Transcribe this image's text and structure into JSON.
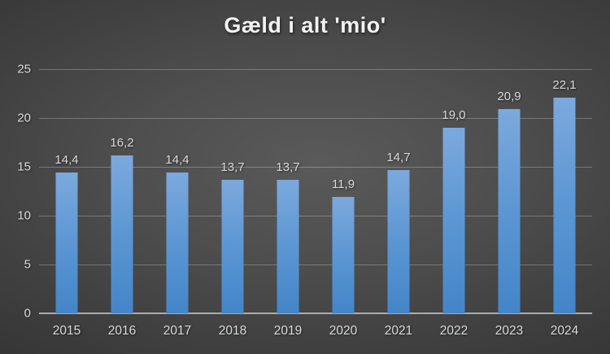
{
  "chart_data": {
    "type": "bar",
    "title": "Gæld i alt 'mio'",
    "categories": [
      "2015",
      "2016",
      "2017",
      "2018",
      "2019",
      "2020",
      "2021",
      "2022",
      "2023",
      "2024"
    ],
    "values": [
      14.4,
      16.2,
      14.4,
      13.7,
      13.7,
      11.9,
      14.7,
      19.0,
      20.9,
      22.1
    ],
    "value_labels": [
      "14,4",
      "16,2",
      "14,4",
      "13,7",
      "13,7",
      "11,9",
      "14,7",
      "19,0",
      "20,9",
      "22,1"
    ],
    "xlabel": "",
    "ylabel": "",
    "ylim": [
      0,
      25
    ],
    "yticks": [
      0,
      5,
      10,
      15,
      20,
      25
    ],
    "ytick_labels": [
      "0",
      "5",
      "10",
      "15",
      "20",
      "25"
    ],
    "grid": true,
    "legend": false,
    "colors": {
      "bar_top": "#7CA9DD",
      "bar_bottom": "#4385C9",
      "background_center": "#575757",
      "background_edge": "#222222",
      "gridline": "#6E6E6E",
      "axis_line": "#ABABAB",
      "label_text": "#D9D9D9",
      "title_text": "#F2F2F2"
    }
  }
}
